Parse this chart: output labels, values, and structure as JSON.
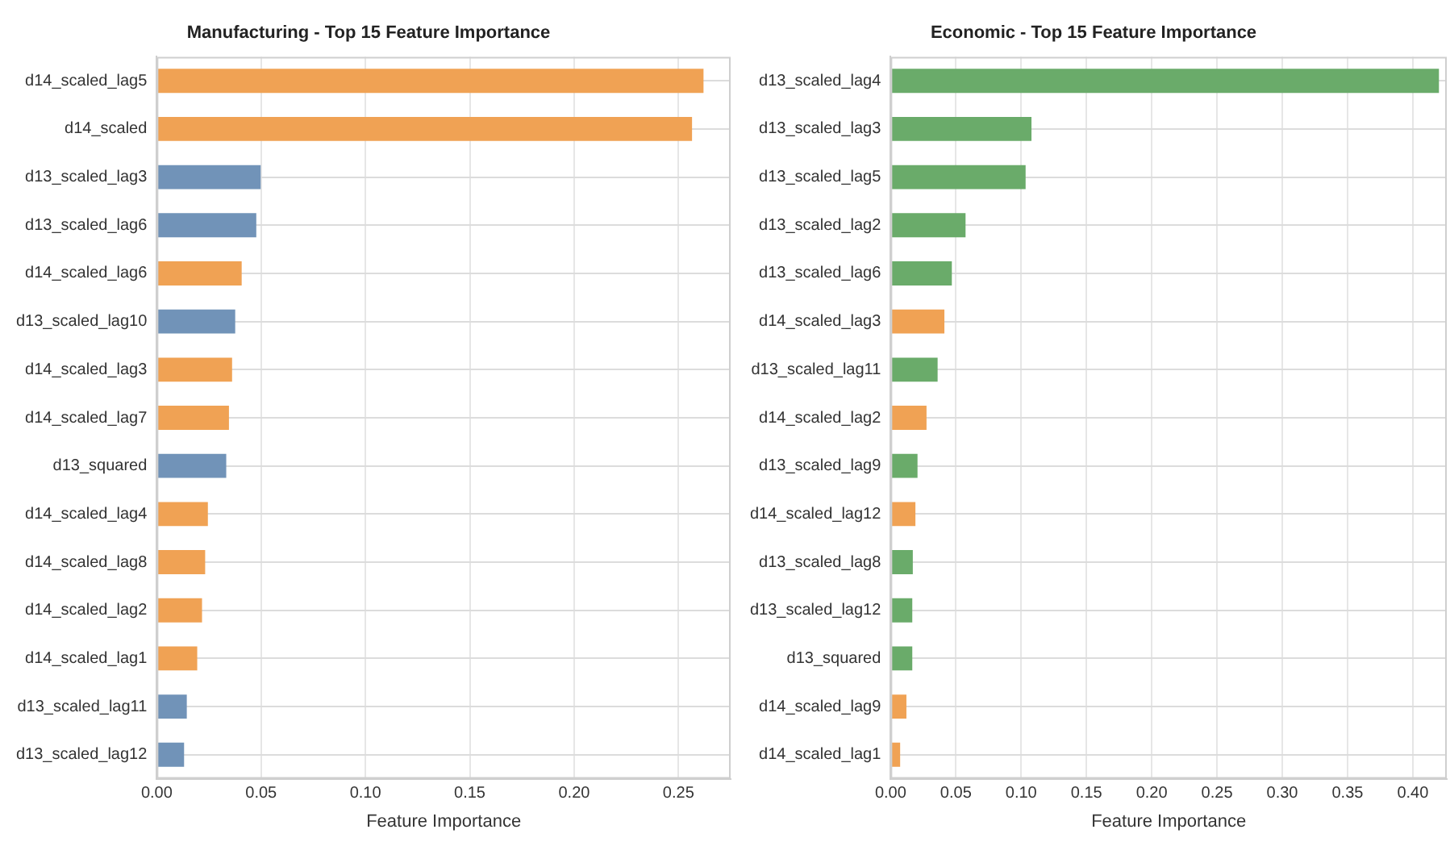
{
  "chart_data": [
    {
      "type": "bar",
      "orientation": "horizontal",
      "title": "Manufacturing - Top 15 Feature Importance",
      "xlabel": "Feature Importance",
      "categories": [
        "d14_scaled_lag5",
        "d14_scaled",
        "d13_scaled_lag3",
        "d13_scaled_lag6",
        "d14_scaled_lag6",
        "d13_scaled_lag10",
        "d14_scaled_lag3",
        "d14_scaled_lag7",
        "d13_squared",
        "d14_scaled_lag4",
        "d14_scaled_lag8",
        "d14_scaled_lag2",
        "d14_scaled_lag1",
        "d13_scaled_lag11",
        "d13_scaled_lag12"
      ],
      "values": [
        0.262,
        0.2565,
        0.0498,
        0.0477,
        0.0407,
        0.0376,
        0.0361,
        0.0346,
        0.0333,
        0.0245,
        0.0232,
        0.0217,
        0.0194,
        0.0144,
        0.0131
      ],
      "colors": [
        "#f0a254",
        "#f0a254",
        "#7193b8",
        "#7193b8",
        "#f0a254",
        "#7193b8",
        "#f0a254",
        "#f0a254",
        "#7193b8",
        "#f0a254",
        "#f0a254",
        "#f0a254",
        "#f0a254",
        "#7193b8",
        "#7193b8"
      ],
      "xlim": [
        0,
        0.275
      ],
      "xticks": [
        {
          "value": 0,
          "label": "0.00"
        },
        {
          "value": 0.05,
          "label": "0.05"
        },
        {
          "value": 0.1,
          "label": "0.10"
        },
        {
          "value": 0.15,
          "label": "0.15"
        },
        {
          "value": 0.2,
          "label": "0.20"
        },
        {
          "value": 0.25,
          "label": "0.25"
        }
      ],
      "grid": true
    },
    {
      "type": "bar",
      "orientation": "horizontal",
      "title": "Economic - Top 15 Feature Importance",
      "xlabel": "Feature Importance",
      "categories": [
        "d13_scaled_lag4",
        "d13_scaled_lag3",
        "d13_scaled_lag5",
        "d13_scaled_lag2",
        "d13_scaled_lag6",
        "d14_scaled_lag3",
        "d13_scaled_lag11",
        "d14_scaled_lag2",
        "d13_scaled_lag9",
        "d14_scaled_lag12",
        "d13_scaled_lag8",
        "d13_scaled_lag12",
        "d13_squared",
        "d14_scaled_lag9",
        "d14_scaled_lag1"
      ],
      "values": [
        0.42,
        0.1079,
        0.1034,
        0.0574,
        0.0469,
        0.0412,
        0.036,
        0.0275,
        0.0206,
        0.019,
        0.017,
        0.0166,
        0.0166,
        0.0121,
        0.0073
      ],
      "colors": [
        "#6aab6a",
        "#6aab6a",
        "#6aab6a",
        "#6aab6a",
        "#6aab6a",
        "#f0a254",
        "#6aab6a",
        "#f0a254",
        "#6aab6a",
        "#f0a254",
        "#6aab6a",
        "#6aab6a",
        "#6aab6a",
        "#f0a254",
        "#f0a254"
      ],
      "xlim": [
        0,
        0.426
      ],
      "xticks": [
        {
          "value": 0,
          "label": "0.00"
        },
        {
          "value": 0.05,
          "label": "0.05"
        },
        {
          "value": 0.1,
          "label": "0.10"
        },
        {
          "value": 0.15,
          "label": "0.15"
        },
        {
          "value": 0.2,
          "label": "0.20"
        },
        {
          "value": 0.25,
          "label": "0.25"
        },
        {
          "value": 0.3,
          "label": "0.30"
        },
        {
          "value": 0.35,
          "label": "0.35"
        },
        {
          "value": 0.4,
          "label": "0.40"
        }
      ],
      "grid": true
    }
  ]
}
